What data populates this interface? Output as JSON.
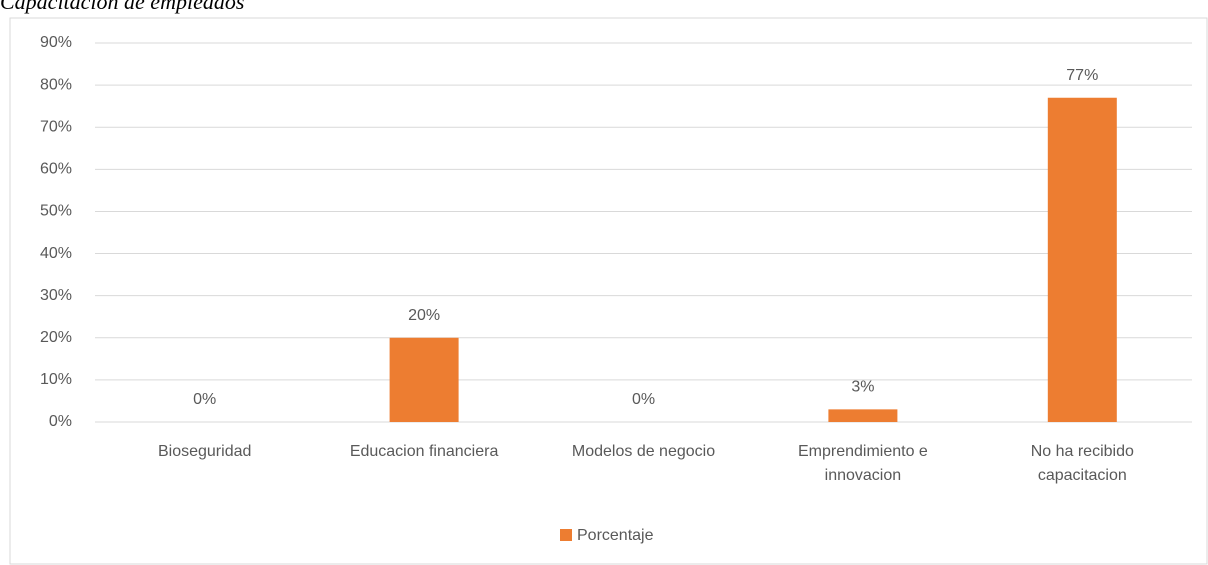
{
  "chart_data": {
    "type": "bar",
    "title": "Capacitacion de empleados",
    "categories": [
      "Bioseguridad",
      "Educacion financiera",
      "Modelos de negocio",
      "Emprendimiento e innovacion",
      "No ha recibido capacitacion"
    ],
    "series": [
      {
        "name": "Porcentaje",
        "color": "#ed7d31",
        "values": [
          0,
          20,
          0,
          3,
          77
        ],
        "value_labels": [
          "0%",
          "20%",
          "0%",
          "3%",
          "77%"
        ]
      }
    ],
    "ylim": [
      0,
      90
    ],
    "yticks": [
      {
        "value": 0,
        "label": "0%"
      },
      {
        "value": 10,
        "label": "10%"
      },
      {
        "value": 20,
        "label": "20%"
      },
      {
        "value": 30,
        "label": "30%"
      },
      {
        "value": 40,
        "label": "40%"
      },
      {
        "value": 50,
        "label": "50%"
      },
      {
        "value": 60,
        "label": "60%"
      },
      {
        "value": 70,
        "label": "70%"
      },
      {
        "value": 80,
        "label": "80%"
      },
      {
        "value": 90,
        "label": "90%"
      }
    ],
    "grid": true,
    "legend": "bottom"
  }
}
